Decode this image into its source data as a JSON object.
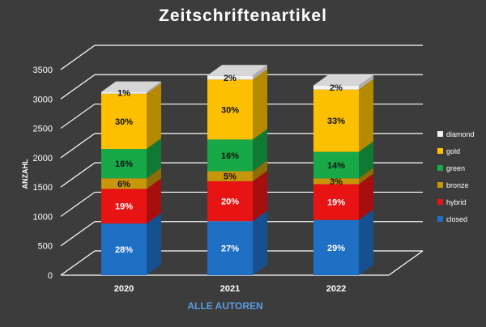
{
  "chart_data": {
    "type": "bar",
    "stacked": true,
    "style": "3d",
    "title": "Zeitschriftenartikel",
    "xlabel": "ALLE AUTOREN",
    "ylabel": "ANZAHL",
    "ylim": [
      0,
      3500
    ],
    "yticks": [
      0,
      500,
      1000,
      1500,
      2000,
      2500,
      3000,
      3500
    ],
    "grid": true,
    "legend_position": "right",
    "categories": [
      "2020",
      "2021",
      "2022"
    ],
    "series": [
      {
        "name": "closed",
        "color": "#1f6fc5",
        "values": [
          880,
          920,
          940
        ],
        "labels": [
          "28%",
          "27%",
          "29%"
        ]
      },
      {
        "name": "hybrid",
        "color": "#e81414",
        "values": [
          590,
          680,
          610
        ],
        "labels": [
          "19%",
          "20%",
          "19%"
        ]
      },
      {
        "name": "bronze",
        "color": "#c8960a",
        "values": [
          180,
          170,
          100
        ],
        "labels": [
          "6%",
          "5%",
          "3%"
        ]
      },
      {
        "name": "green",
        "color": "#18a848",
        "values": [
          500,
          540,
          450
        ],
        "labels": [
          "16%",
          "16%",
          "14%"
        ]
      },
      {
        "name": "gold",
        "color": "#fcc000",
        "values": [
          940,
          1020,
          1060
        ],
        "labels": [
          "30%",
          "30%",
          "33%"
        ]
      },
      {
        "name": "diamond",
        "color": "#f2f2f2",
        "values": [
          30,
          70,
          70
        ],
        "labels": [
          "1%",
          "2%",
          "2%"
        ]
      }
    ]
  }
}
